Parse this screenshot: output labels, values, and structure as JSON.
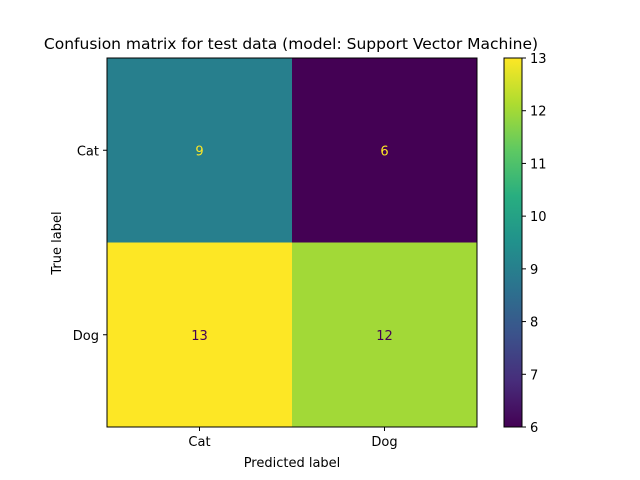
{
  "chart_data": {
    "type": "heatmap",
    "title": "Confusion matrix for test data (model: Support Vector Machine)",
    "xlabel": "Predicted label",
    "ylabel": "True label",
    "x_categories": [
      "Cat",
      "Dog"
    ],
    "y_categories": [
      "Cat",
      "Dog"
    ],
    "values": [
      [
        9,
        6
      ],
      [
        13,
        12
      ]
    ],
    "colormap": "viridis",
    "color_range": [
      6,
      13
    ],
    "colorbar_ticks": [
      6,
      7,
      8,
      9,
      10,
      11,
      12,
      13
    ],
    "grid": false
  }
}
